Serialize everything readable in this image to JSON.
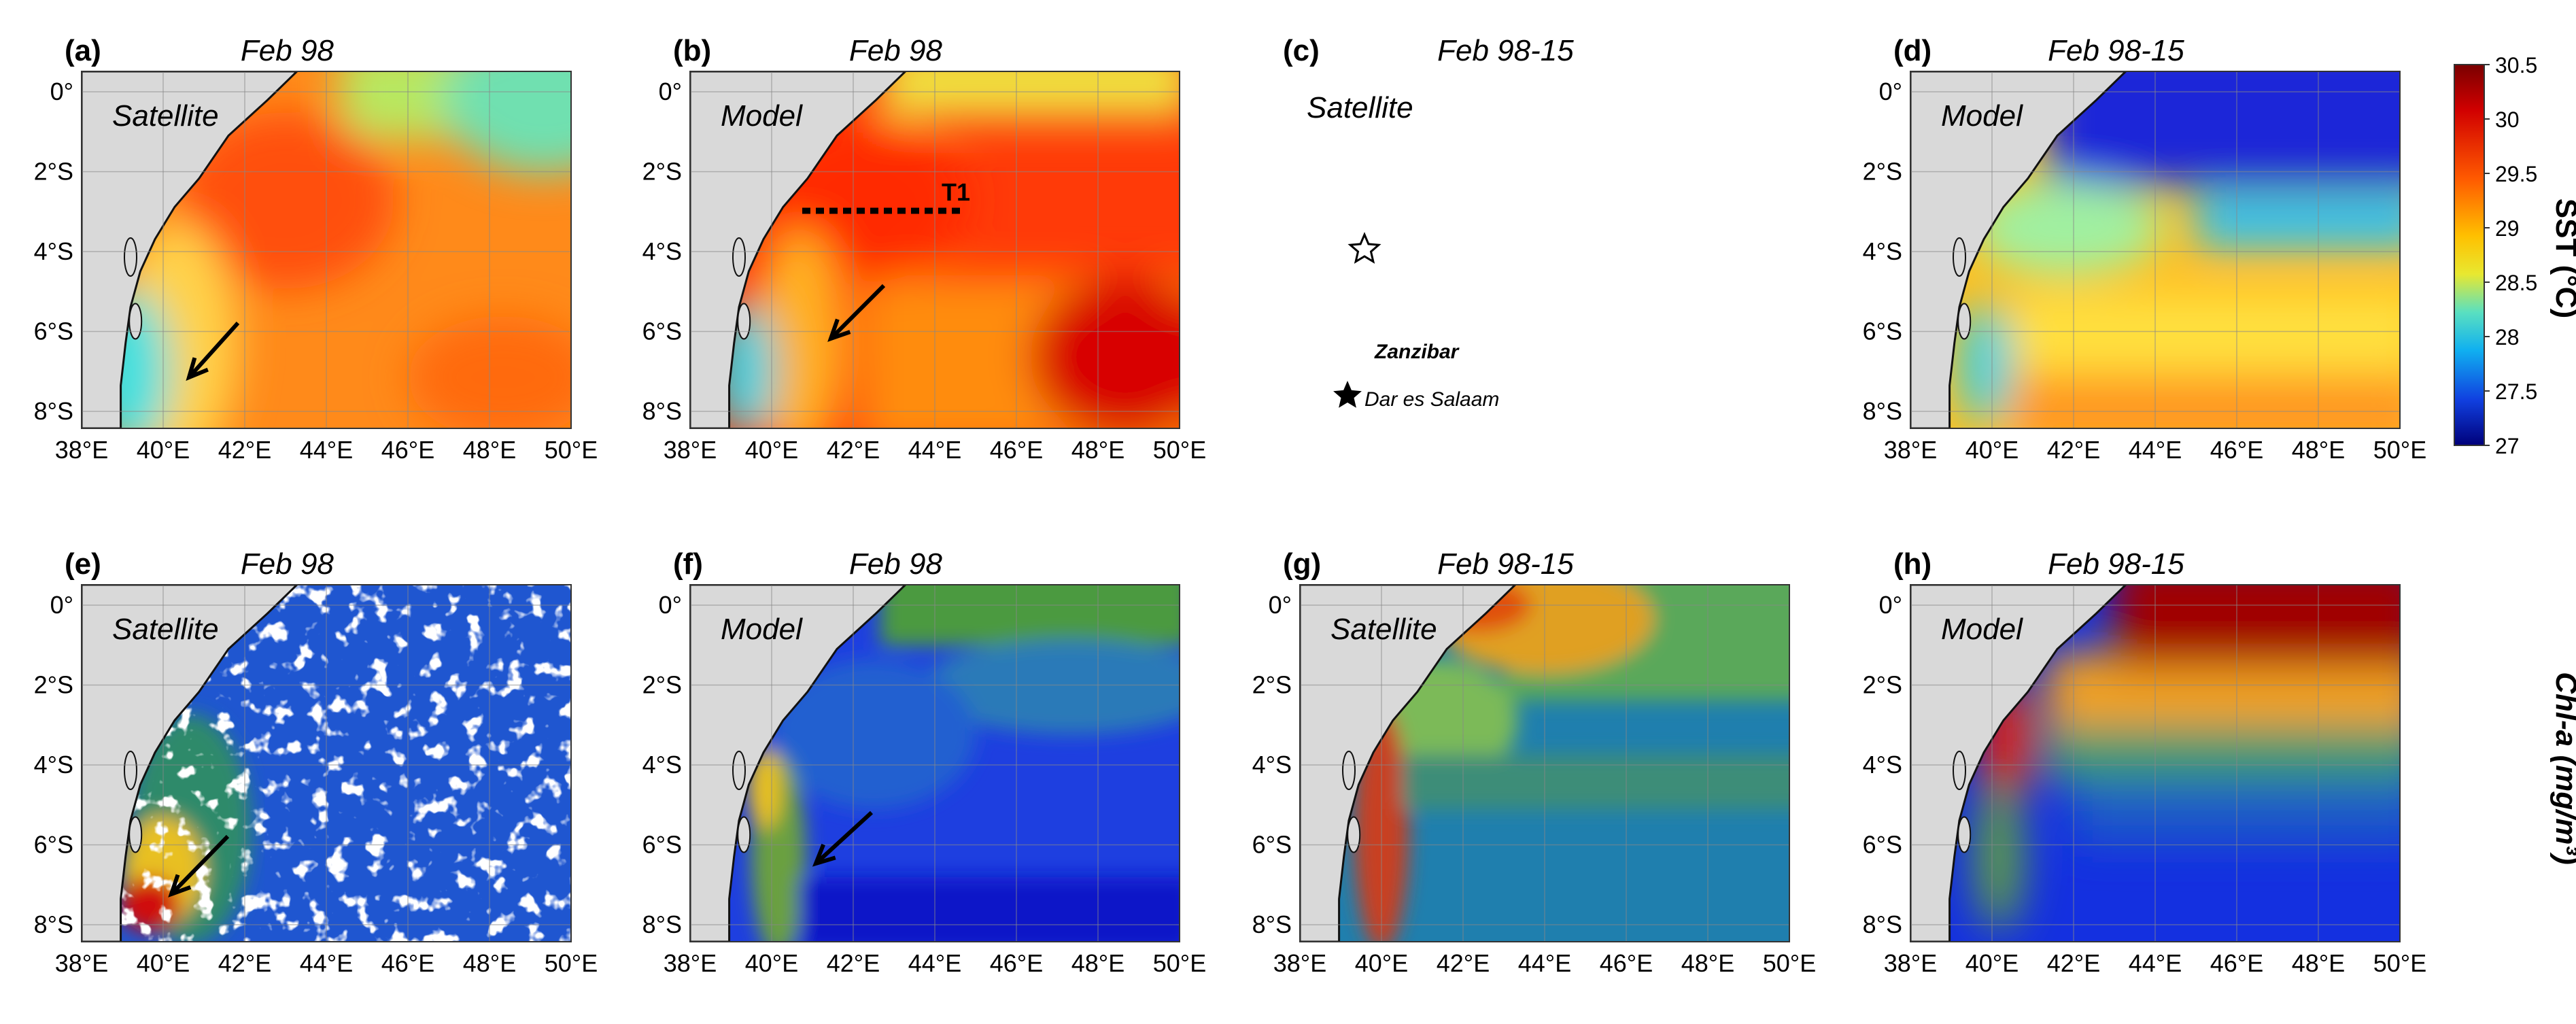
{
  "colorbar": {
    "title": "SST (°C)",
    "ticks": [
      "30.5",
      "30",
      "29.5",
      "29",
      "28.5",
      "28",
      "27.5",
      "27"
    ]
  },
  "chl_label": "Chl-a (mg/m³)",
  "axes": {
    "x_ticks": [
      "38°E",
      "40°E",
      "42°E",
      "44°E",
      "46°E",
      "48°E",
      "50°E"
    ],
    "y_ticks": [
      "0°",
      "2°S",
      "4°S",
      "6°S",
      "8°S"
    ]
  },
  "panels": [
    {
      "label": "(a)",
      "title": "Feb 98",
      "source": "Satellite",
      "field": "sst_sat98"
    },
    {
      "label": "(b)",
      "title": "Feb 98",
      "source": "Model",
      "field": "sst_mod98",
      "transect": "T1"
    },
    {
      "label": "(c)",
      "title": "Feb 98-15",
      "source": "Satellite",
      "field": "blank",
      "places": {
        "island": "Zanzibar",
        "city": "Dar es Salaam"
      }
    },
    {
      "label": "(d)",
      "title": "Feb 98-15",
      "source": "Model",
      "field": "sst_modclim"
    },
    {
      "label": "(e)",
      "title": "Feb 98",
      "source": "Satellite",
      "field": "chl_sat98"
    },
    {
      "label": "(f)",
      "title": "Feb 98",
      "source": "Model",
      "field": "chl_mod98"
    },
    {
      "label": "(g)",
      "title": "Feb 98-15",
      "source": "Satellite",
      "field": "chl_satclim"
    },
    {
      "label": "(h)",
      "title": "Feb 98-15",
      "source": "Model",
      "field": "chl_modclim"
    }
  ]
}
